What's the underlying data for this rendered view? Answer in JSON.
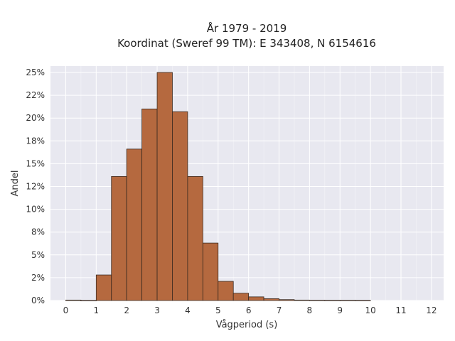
{
  "chart_data": {
    "type": "bar",
    "title_line1": "År 1979 - 2019",
    "title_line2": "Koordinat (Sweref 99 TM): E 343408, N 6154616",
    "xlabel": "Vågperiod (s)",
    "ylabel": "Andel",
    "bin_width": 0.5,
    "x": [
      0,
      0.5,
      1,
      1.5,
      2,
      2.5,
      3,
      3.5,
      4,
      4.5,
      5,
      5.5,
      6,
      6.5,
      7,
      7.5,
      8,
      8.5,
      9,
      9.5
    ],
    "values": [
      0.05,
      0.0,
      2.8,
      13.6,
      16.6,
      21.0,
      25.0,
      20.7,
      13.6,
      6.3,
      2.1,
      0.8,
      0.4,
      0.2,
      0.1,
      0.05,
      0.03,
      0.02,
      0.02,
      0.01
    ],
    "xlim": [
      -0.5,
      12.4
    ],
    "ylim": [
      0,
      25.7
    ],
    "x_ticks": [
      0,
      1,
      2,
      3,
      4,
      5,
      6,
      7,
      8,
      9,
      10,
      11,
      12
    ],
    "x_tick_labels": [
      "0",
      "1",
      "2",
      "3",
      "4",
      "5",
      "6",
      "7",
      "8",
      "9",
      "10",
      "11",
      "12"
    ],
    "y_ticks": [
      0,
      2.5,
      5,
      7.5,
      10,
      12.5,
      15,
      17.5,
      20,
      22.5,
      25
    ],
    "y_tick_labels": [
      "0%",
      "2%",
      "5%",
      "8%",
      "10%",
      "12%",
      "15%",
      "18%",
      "20%",
      "22%",
      "25%"
    ],
    "bar_color": "#b5693f",
    "bar_edge_color": "#3a2a20",
    "plot_bg": "#e8e8f0",
    "grid": true
  }
}
